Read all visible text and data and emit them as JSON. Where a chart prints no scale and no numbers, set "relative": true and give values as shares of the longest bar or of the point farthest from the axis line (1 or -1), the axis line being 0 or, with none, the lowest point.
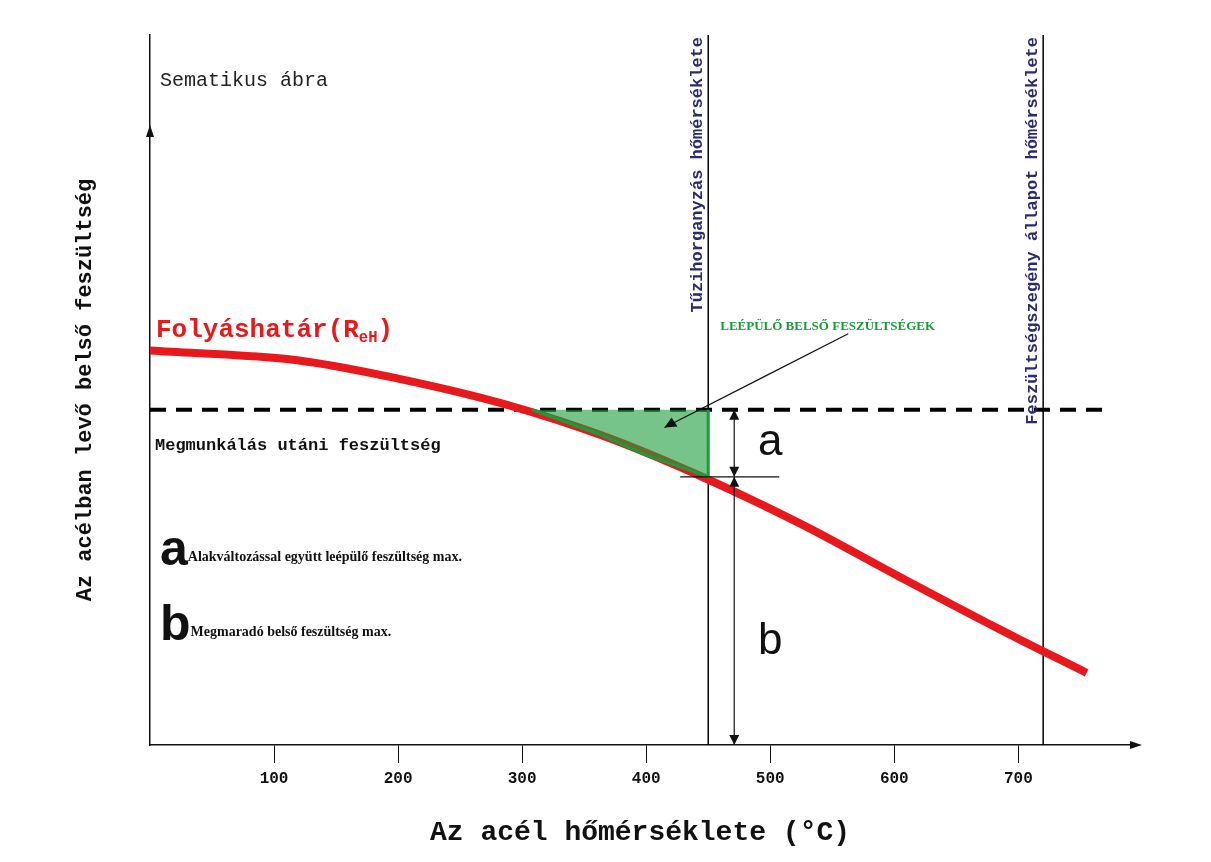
{
  "chart_data": {
    "type": "line",
    "title": "Sematikus ábra",
    "xlabel": "Az acél hőmérséklete (°C)",
    "ylabel": "Az acélban levő belső feszültség",
    "relative": true,
    "xlim": [
      0,
      790
    ],
    "xticks": [
      100,
      200,
      300,
      400,
      500,
      600,
      700
    ],
    "tick_labels": "x",
    "grid": false,
    "marker": "none",
    "series": [
      {
        "name": "Folyáshatár(R$_{eH}$)",
        "color": "#e8191c",
        "x": [
          0,
          120,
          200,
          285,
          365,
          440,
          525,
          605,
          685,
          755
        ],
        "values": [
          1,
          0.975,
          0.929,
          0.865,
          0.784,
          0.687,
          0.56,
          0.425,
          0.293,
          0.183
        ]
      },
      {
        "name": "LEÉPÜLŐ BELSŐ FESZÜLTSÉGEK",
        "type": "area",
        "color": "#1a9c3a",
        "x": [
          308,
          365,
          400,
          450,
          450
        ],
        "values": [
          0.85,
          0.784,
          0.735,
          0.68,
          0.85
        ]
      }
    ],
    "ref_lines": [
      {
        "axis": "y",
        "value": 0.85,
        "label": "Megmunkálás utáni feszültség",
        "color": "#000000",
        "line_style": "dashed"
      },
      {
        "axis": "x",
        "value": 450,
        "label": "Tűzihorganyzás hőmérséklete",
        "color": "#000000",
        "line_style": "solid"
      },
      {
        "axis": "x",
        "value": 720,
        "label": "Feszültségszegény állapot hőmérséklete",
        "color": "#000000",
        "line_style": "solid"
      }
    ],
    "annotations": [
      "a",
      "b",
      "aAlakváltozással együtt leépülő feszültség max.",
      "bMegmaradó belső feszültség max."
    ]
  }
}
